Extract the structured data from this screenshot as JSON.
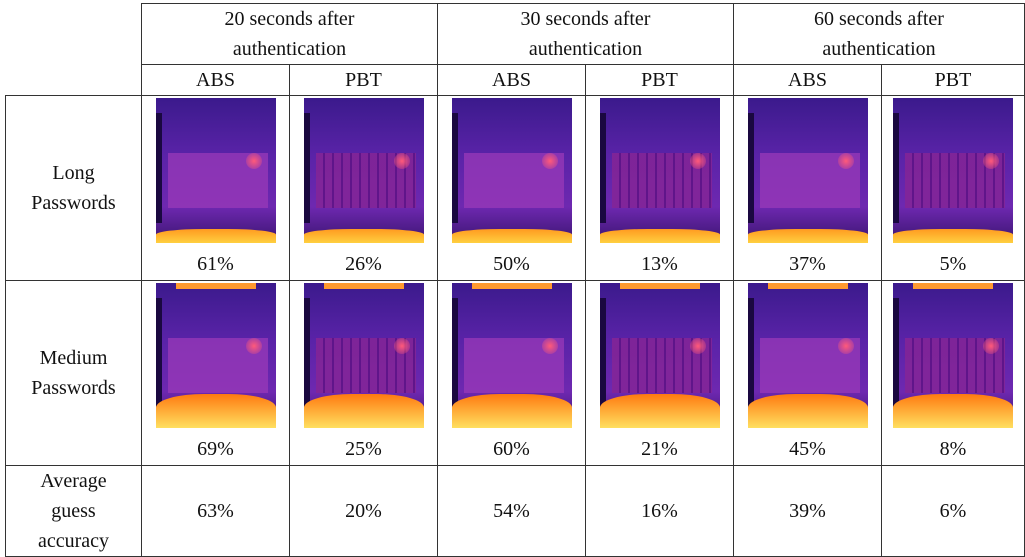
{
  "table": {
    "header": {
      "groups": [
        "20 seconds after authentication",
        "30 seconds after authentication",
        "60 seconds after authentication"
      ],
      "methods": [
        "ABS",
        "PBT",
        "ABS",
        "PBT",
        "ABS",
        "PBT"
      ]
    },
    "rows": [
      {
        "label": "Long Passwords",
        "cells": [
          "61%",
          "26%",
          "50%",
          "13%",
          "37%",
          "5%"
        ]
      },
      {
        "label": "Medium Passwords",
        "cells": [
          "69%",
          "25%",
          "60%",
          "21%",
          "45%",
          "8%"
        ]
      },
      {
        "label": "Average guess accuracy",
        "cells": [
          "63%",
          "20%",
          "54%",
          "16%",
          "39%",
          "6%"
        ]
      }
    ]
  }
}
